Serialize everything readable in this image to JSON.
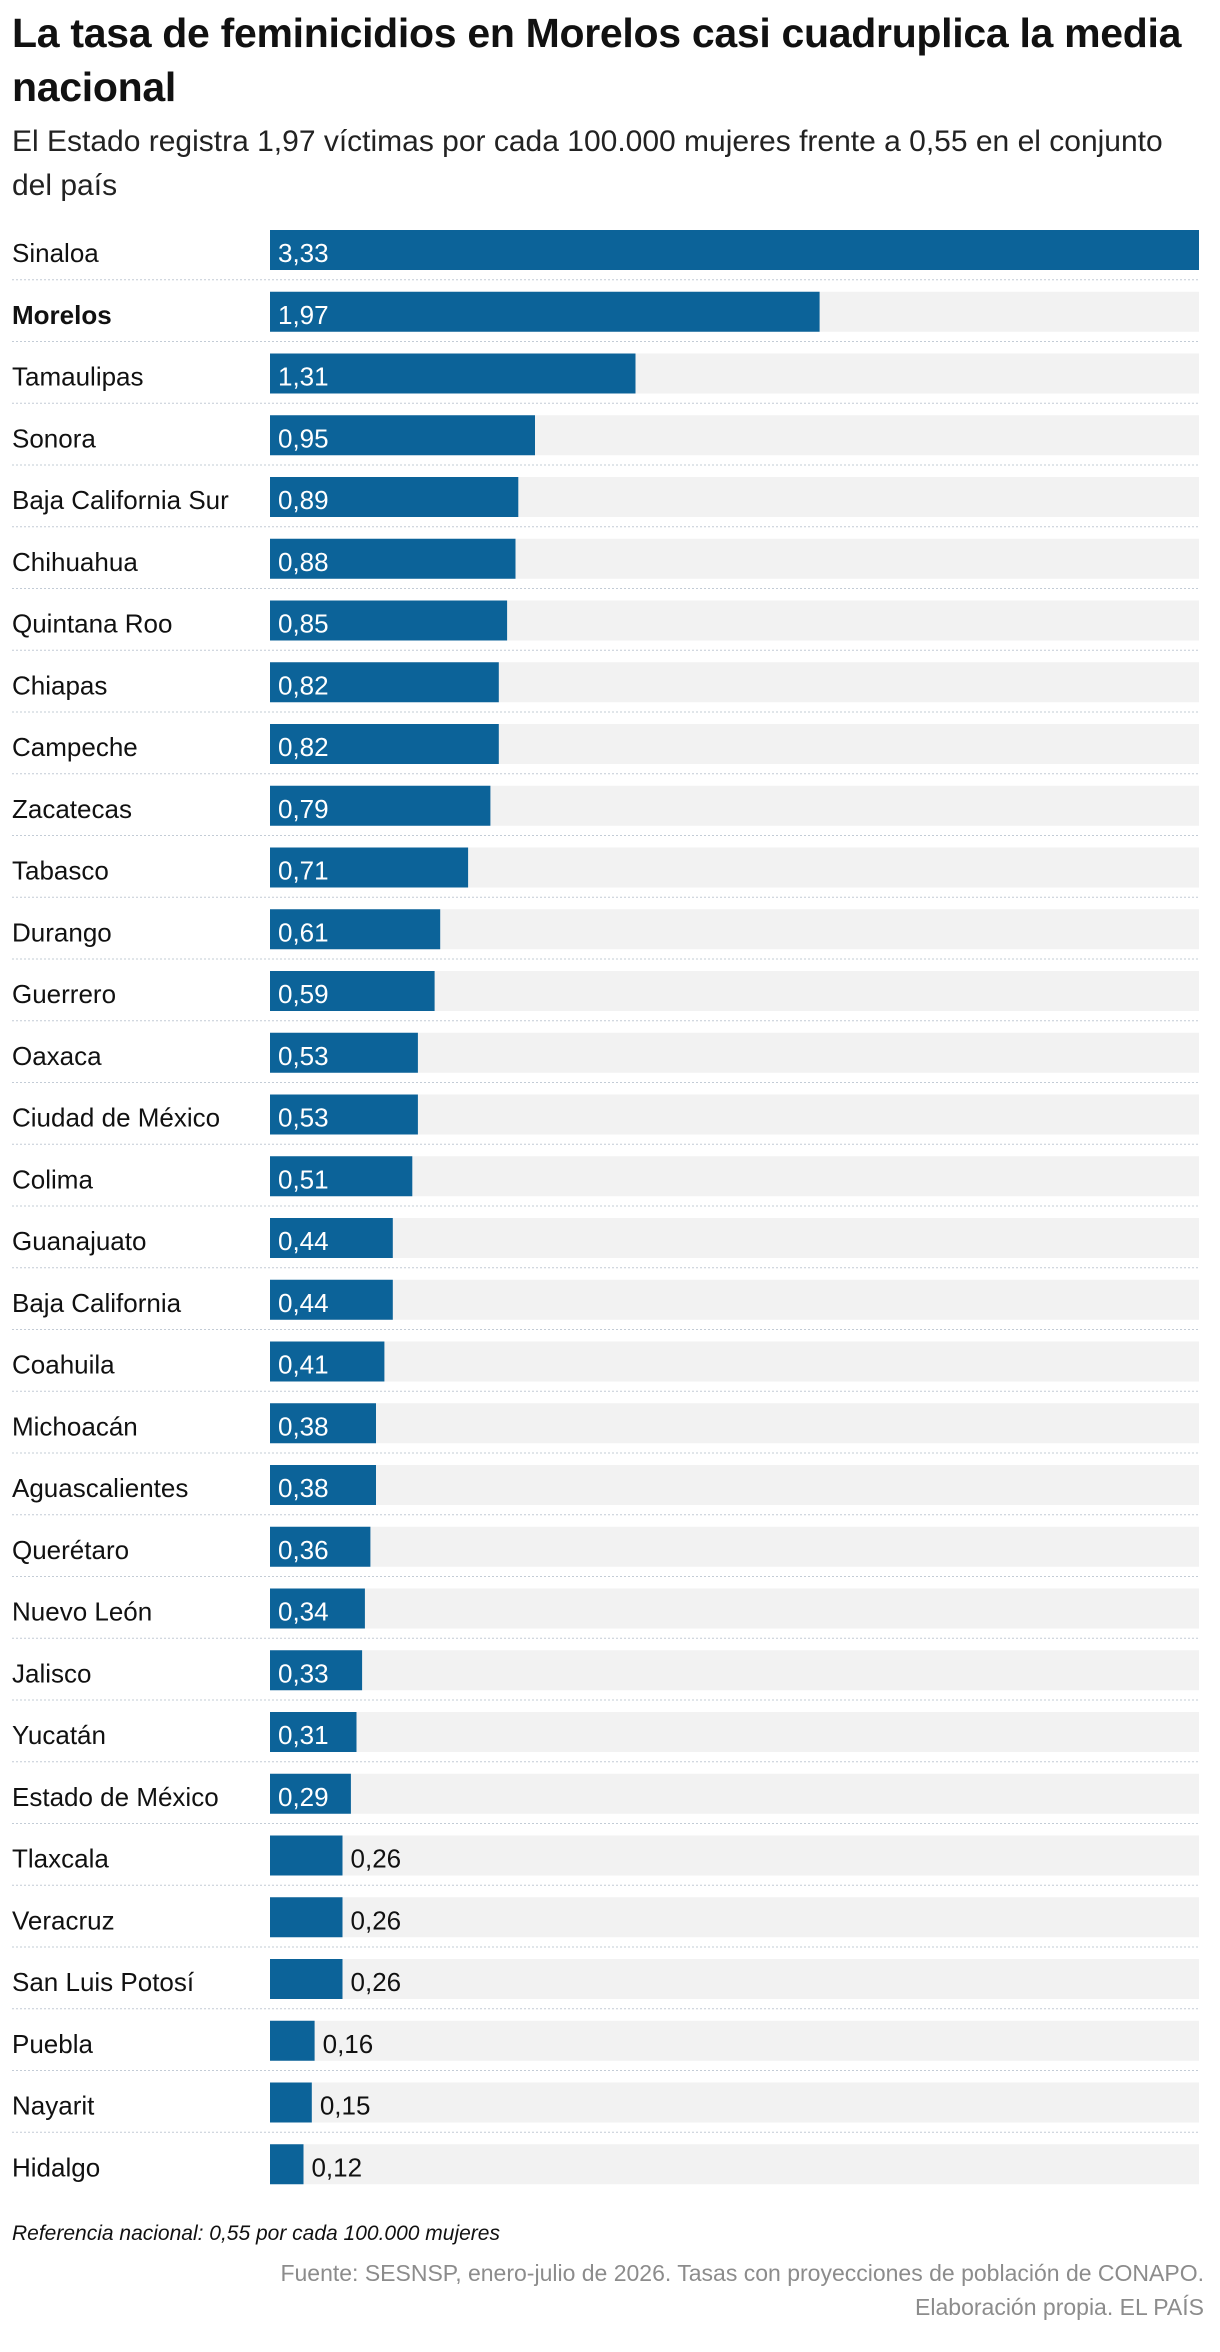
{
  "header": {
    "title": "La tasa de feminicidios en Morelos casi cuadruplica la media nacional",
    "subtitle": "El Estado registra 1,97 víctimas por cada 100.000 mujeres frente a 0,55 en el conjunto del país"
  },
  "chart_data": {
    "type": "bar",
    "orientation": "horizontal",
    "categories": [
      "Sinaloa",
      "Morelos",
      "Tamaulipas",
      "Sonora",
      "Baja California Sur",
      "Chihuahua",
      "Quintana Roo",
      "Chiapas",
      "Campeche",
      "Zacatecas",
      "Tabasco",
      "Durango",
      "Guerrero",
      "Oaxaca",
      "Ciudad de México",
      "Colima",
      "Guanajuato",
      "Baja California",
      "Coahuila",
      "Michoacán",
      "Aguascalientes",
      "Querétaro",
      "Nuevo León",
      "Jalisco",
      "Yucatán",
      "Estado de México",
      "Tlaxcala",
      "Veracruz",
      "San Luis Potosí",
      "Puebla",
      "Nayarit",
      "Hidalgo"
    ],
    "values": [
      3.33,
      1.97,
      1.31,
      0.95,
      0.89,
      0.88,
      0.85,
      0.82,
      0.82,
      0.79,
      0.71,
      0.61,
      0.59,
      0.53,
      0.53,
      0.51,
      0.44,
      0.44,
      0.41,
      0.38,
      0.38,
      0.36,
      0.34,
      0.33,
      0.31,
      0.29,
      0.26,
      0.26,
      0.26,
      0.16,
      0.15,
      0.12
    ],
    "value_labels": [
      "3,33",
      "1,97",
      "1,31",
      "0,95",
      "0,89",
      "0,88",
      "0,85",
      "0,82",
      "0,82",
      "0,79",
      "0,71",
      "0,61",
      "0,59",
      "0,53",
      "0,53",
      "0,51",
      "0,44",
      "0,44",
      "0,41",
      "0,38",
      "0,38",
      "0,36",
      "0,34",
      "0,33",
      "0,31",
      "0,29",
      "0,26",
      "0,26",
      "0,26",
      "0,16",
      "0,15",
      "0,12"
    ],
    "highlight": "Morelos",
    "xlim": [
      0,
      3.33
    ],
    "grid": false,
    "colors": {
      "bar": "#0c6399",
      "track": "#f2f2f2",
      "separator": "#c3ccd6",
      "label_inside": "#ffffff",
      "label_outside": "#111111"
    }
  },
  "footer": {
    "note": "Referencia nacional: 0,55 por cada 100.000 mujeres",
    "source_line1": "Fuente: SESNSP, enero-julio de 2026. Tasas con proyecciones de población de CONAPO.",
    "source_line2": "Elaboración propia. EL PAÍS"
  }
}
